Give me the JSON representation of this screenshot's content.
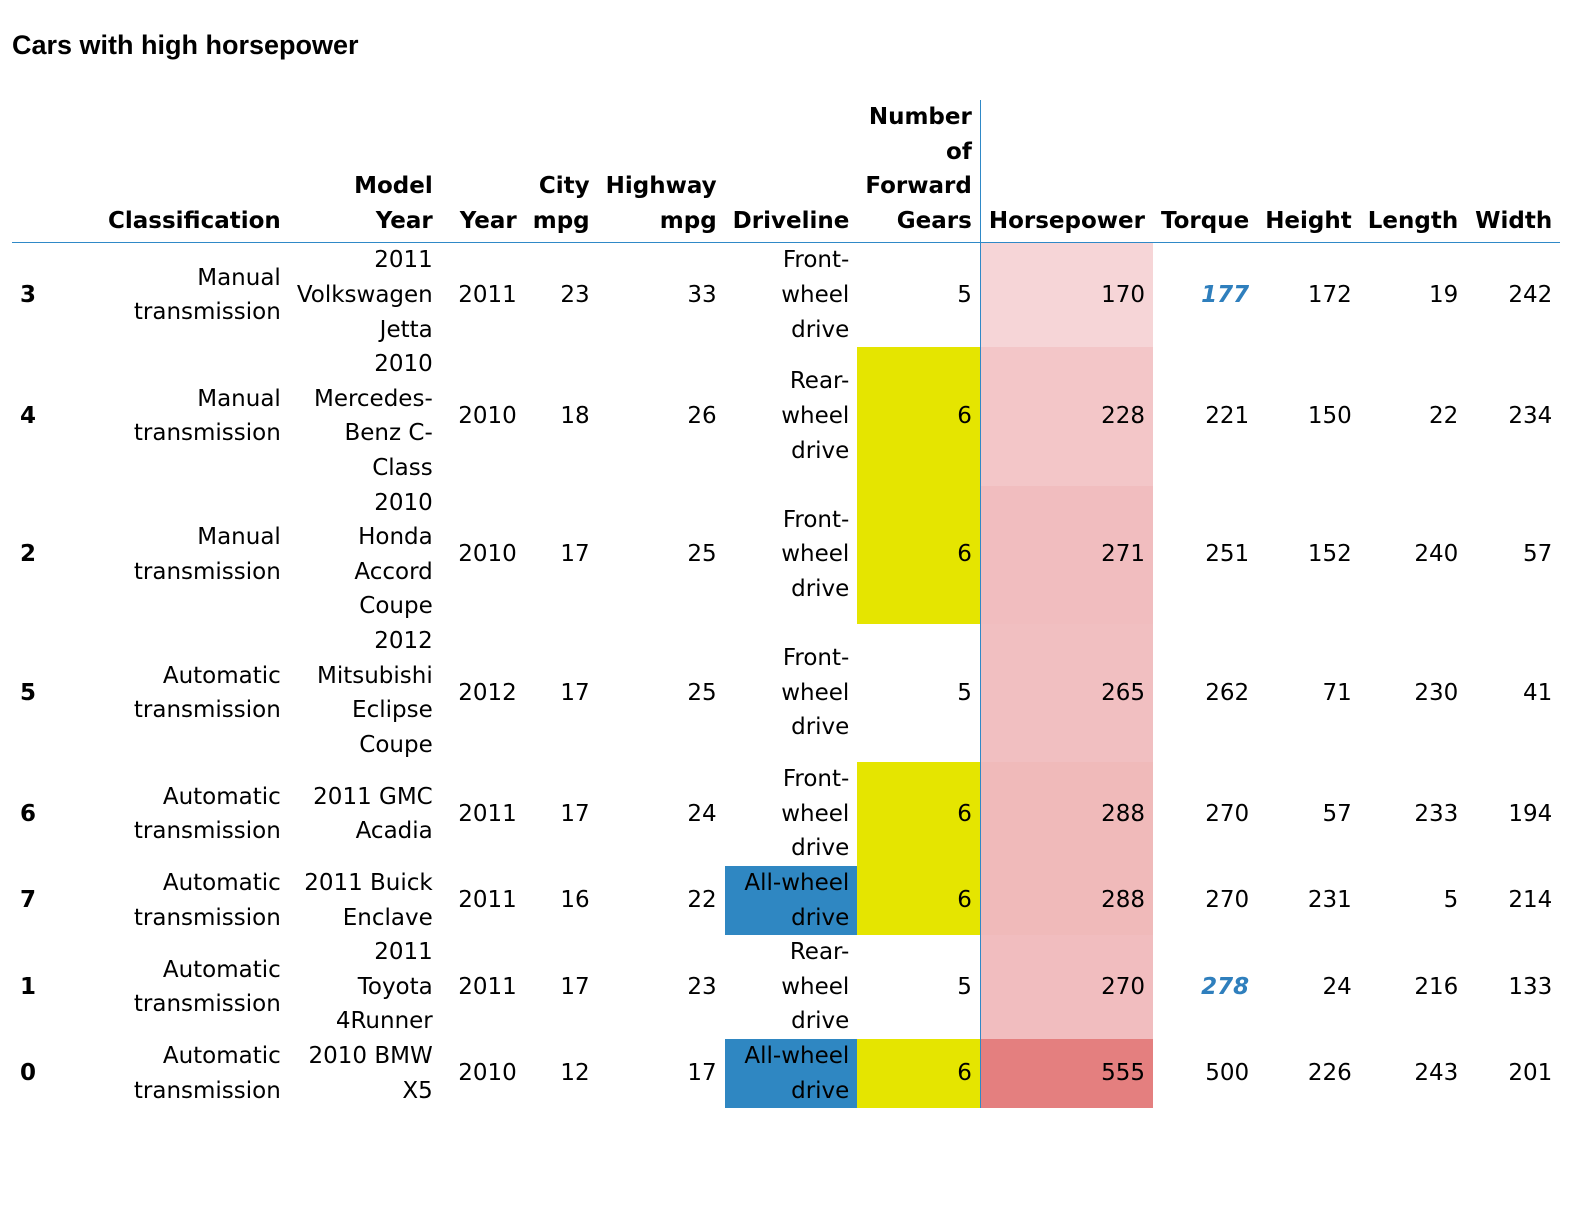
{
  "title": "Cars with high horsepower",
  "columns": [
    "",
    "Classification",
    "Model Year",
    "Year",
    "City mpg",
    "Highway mpg",
    "Driveline",
    "Number of Forward Gears",
    "Horsepower",
    "Torque",
    "Height",
    "Length",
    "Width"
  ],
  "rows": [
    {
      "index": "3",
      "classification": "Manual transmission",
      "model_year": "2011 Volkswagen Jetta",
      "year": "2011",
      "city_mpg": "23",
      "highway_mpg": "33",
      "driveline": "Front-wheel drive",
      "gears": "5",
      "horsepower": "170",
      "torque": "177",
      "height": "172",
      "length": "19",
      "width": "242",
      "gears_highlight": false,
      "driveline_highlight": false,
      "torque_highlight": true,
      "horsepower_color": "#f6d5d7"
    },
    {
      "index": "4",
      "classification": "Manual transmission",
      "model_year": "2010 Mercedes-Benz C-Class",
      "year": "2010",
      "city_mpg": "18",
      "highway_mpg": "26",
      "driveline": "Rear-wheel drive",
      "gears": "6",
      "horsepower": "228",
      "torque": "221",
      "height": "150",
      "length": "22",
      "width": "234",
      "gears_highlight": true,
      "driveline_highlight": false,
      "torque_highlight": false,
      "horsepower_color": "#f3c6c8"
    },
    {
      "index": "2",
      "classification": "Manual transmission",
      "model_year": "2010 Honda Accord Coupe",
      "year": "2010",
      "city_mpg": "17",
      "highway_mpg": "25",
      "driveline": "Front-wheel drive",
      "gears": "6",
      "horsepower": "271",
      "torque": "251",
      "height": "152",
      "length": "240",
      "width": "57",
      "gears_highlight": true,
      "driveline_highlight": false,
      "torque_highlight": false,
      "horsepower_color": "#f1bdbf"
    },
    {
      "index": "5",
      "classification": "Automatic transmission",
      "model_year": "2012 Mitsubishi Eclipse Coupe",
      "year": "2012",
      "city_mpg": "17",
      "highway_mpg": "25",
      "driveline": "Front-wheel drive",
      "gears": "5",
      "horsepower": "265",
      "torque": "262",
      "height": "71",
      "length": "230",
      "width": "41",
      "gears_highlight": false,
      "driveline_highlight": false,
      "torque_highlight": false,
      "horsepower_color": "#f1bfc1"
    },
    {
      "index": "6",
      "classification": "Automatic transmission",
      "model_year": "2011 GMC Acadia",
      "year": "2011",
      "city_mpg": "17",
      "highway_mpg": "24",
      "driveline": "Front-wheel drive",
      "gears": "6",
      "horsepower": "288",
      "torque": "270",
      "height": "57",
      "length": "233",
      "width": "194",
      "gears_highlight": true,
      "driveline_highlight": false,
      "torque_highlight": false,
      "horsepower_color": "#f0baba"
    },
    {
      "index": "7",
      "classification": "Automatic transmission",
      "model_year": "2011 Buick Enclave",
      "year": "2011",
      "city_mpg": "16",
      "highway_mpg": "22",
      "driveline": "All-wheel drive",
      "gears": "6",
      "horsepower": "288",
      "torque": "270",
      "height": "231",
      "length": "5",
      "width": "214",
      "gears_highlight": true,
      "driveline_highlight": true,
      "torque_highlight": false,
      "horsepower_color": "#f0baba"
    },
    {
      "index": "1",
      "classification": "Automatic transmission",
      "model_year": "2011 Toyota 4Runner",
      "year": "2011",
      "city_mpg": "17",
      "highway_mpg": "23",
      "driveline": "Rear-wheel drive",
      "gears": "5",
      "horsepower": "270",
      "torque": "278",
      "height": "24",
      "length": "216",
      "width": "133",
      "gears_highlight": false,
      "driveline_highlight": false,
      "torque_highlight": true,
      "horsepower_color": "#f1bdbf"
    },
    {
      "index": "0",
      "classification": "Automatic transmission",
      "model_year": "2010 BMW X5",
      "year": "2010",
      "city_mpg": "12",
      "highway_mpg": "17",
      "driveline": "All-wheel drive",
      "gears": "6",
      "horsepower": "555",
      "torque": "500",
      "height": "226",
      "length": "243",
      "width": "201",
      "gears_highlight": true,
      "driveline_highlight": true,
      "torque_highlight": false,
      "horsepower_color": "#e47f7f"
    }
  ]
}
